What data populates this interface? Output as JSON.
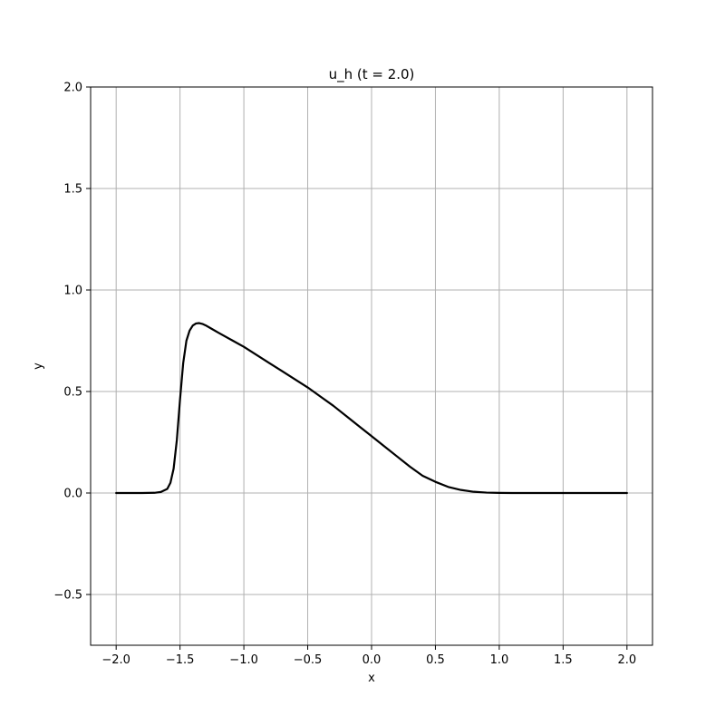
{
  "chart_data": {
    "type": "line",
    "title": "u_h (t = 2.0)",
    "xlabel": "x",
    "ylabel": "y",
    "xlim": [
      -2.2,
      2.2
    ],
    "ylim": [
      -0.75,
      2.0
    ],
    "grid": true,
    "xticks": [
      -2.0,
      -1.5,
      -1.0,
      -0.5,
      0.0,
      0.5,
      1.0,
      1.5,
      2.0
    ],
    "xtick_labels": [
      "−2.0",
      "−1.5",
      "−1.0",
      "−0.5",
      "0.0",
      "0.5",
      "1.0",
      "1.5",
      "2.0"
    ],
    "yticks": [
      -0.5,
      0.0,
      0.5,
      1.0,
      1.5,
      2.0
    ],
    "ytick_labels": [
      "−0.5",
      "0.0",
      "0.5",
      "1.0",
      "1.5",
      "2.0"
    ],
    "colors": {
      "line": "#000000",
      "grid": "#b0b0b0",
      "axes": "#000000"
    },
    "series": [
      {
        "x": [
          -2.0,
          -1.8,
          -1.7,
          -1.65,
          -1.6,
          -1.575,
          -1.55,
          -1.525,
          -1.5,
          -1.475,
          -1.45,
          -1.425,
          -1.4,
          -1.375,
          -1.35,
          -1.325,
          -1.3,
          -1.25,
          -1.2,
          -1.1,
          -1.0,
          -0.9,
          -0.8,
          -0.7,
          -0.6,
          -0.5,
          -0.4,
          -0.3,
          -0.2,
          -0.1,
          0.0,
          0.1,
          0.2,
          0.3,
          0.4,
          0.5,
          0.6,
          0.7,
          0.8,
          0.9,
          1.0,
          1.1,
          1.2,
          1.5,
          2.0
        ],
        "y": [
          0.0,
          0.0,
          0.001,
          0.005,
          0.02,
          0.05,
          0.12,
          0.26,
          0.46,
          0.64,
          0.75,
          0.8,
          0.825,
          0.835,
          0.837,
          0.833,
          0.826,
          0.808,
          0.79,
          0.755,
          0.72,
          0.68,
          0.64,
          0.6,
          0.56,
          0.52,
          0.475,
          0.43,
          0.38,
          0.33,
          0.28,
          0.23,
          0.18,
          0.13,
          0.085,
          0.055,
          0.03,
          0.015,
          0.006,
          0.002,
          0.0005,
          0.0,
          0.0,
          0.0,
          0.0
        ]
      }
    ]
  }
}
